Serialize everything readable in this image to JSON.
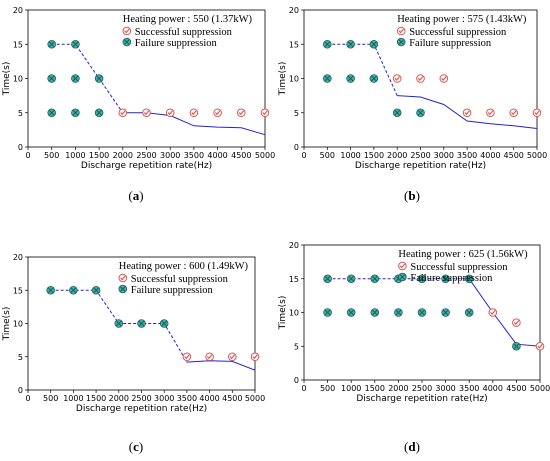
{
  "colors": {
    "line": "#2222dd",
    "success_marker": "#d9534f",
    "failure_fill": "#3db39a",
    "failure_cross": "#1d5c66"
  },
  "chart_data": [
    {
      "type": "line",
      "panel": "(a)",
      "legend_title": "Heating power : 550 (1.37kW)",
      "legend": [
        "Successful suppression",
        "Failure suppression"
      ],
      "legend_placement": "top-right",
      "xlabel": "Discharge repetition rate(Hz)",
      "ylabel": "Time(s)",
      "xlim": [
        0,
        5000
      ],
      "ylim": [
        0,
        20
      ],
      "xticks": [
        0,
        500,
        1000,
        1500,
        2000,
        2500,
        3000,
        3500,
        4000,
        4500,
        5000
      ],
      "yticks": [
        0,
        5,
        10,
        15,
        20
      ],
      "grid": false,
      "line": [
        [
          500,
          15
        ],
        [
          1000,
          15
        ],
        [
          1500,
          10
        ],
        [
          2000,
          5
        ],
        [
          2500,
          5
        ],
        [
          3000,
          4.6
        ],
        [
          3500,
          3.1
        ],
        [
          4000,
          2.9
        ],
        [
          4500,
          2.8
        ],
        [
          5000,
          1.8
        ]
      ],
      "dashed_until_x": 2000,
      "success": [
        [
          2000,
          5
        ],
        [
          2500,
          5
        ],
        [
          3000,
          5
        ],
        [
          3500,
          5
        ],
        [
          4000,
          5
        ],
        [
          4500,
          5
        ],
        [
          5000,
          5
        ]
      ],
      "failure": [
        [
          500,
          15
        ],
        [
          500,
          10
        ],
        [
          500,
          5
        ],
        [
          1000,
          15
        ],
        [
          1000,
          10
        ],
        [
          1000,
          5
        ],
        [
          1500,
          10
        ],
        [
          1500,
          5
        ]
      ]
    },
    {
      "type": "line",
      "panel": "(b)",
      "legend_title": "Heating power : 575 (1.43kW)",
      "legend": [
        "Successful suppression",
        "Failure suppression"
      ],
      "legend_placement": "top-right",
      "xlabel": "Discharge repetition rate(Hz)",
      "ylabel": "Time(s)",
      "xlim": [
        0,
        5000
      ],
      "ylim": [
        0,
        20
      ],
      "xticks": [
        0,
        500,
        1000,
        1500,
        2000,
        2500,
        3000,
        3500,
        4000,
        4500,
        5000
      ],
      "yticks": [
        0,
        5,
        10,
        15,
        20
      ],
      "grid": false,
      "line": [
        [
          500,
          15
        ],
        [
          1000,
          15
        ],
        [
          1500,
          15
        ],
        [
          2000,
          7.5
        ],
        [
          2500,
          7.3
        ],
        [
          3000,
          6.2
        ],
        [
          3500,
          3.8
        ],
        [
          4000,
          3.4
        ],
        [
          4500,
          3.1
        ],
        [
          5000,
          2.7
        ]
      ],
      "dashed_until_x": 2000,
      "success": [
        [
          2000,
          10
        ],
        [
          2500,
          10
        ],
        [
          3000,
          10
        ],
        [
          3500,
          5
        ],
        [
          4000,
          5
        ],
        [
          4500,
          5
        ],
        [
          5000,
          5
        ]
      ],
      "failure": [
        [
          500,
          15
        ],
        [
          500,
          10
        ],
        [
          1000,
          15
        ],
        [
          1000,
          10
        ],
        [
          1500,
          15
        ],
        [
          1500,
          10
        ],
        [
          2000,
          5
        ],
        [
          2500,
          5
        ]
      ]
    },
    {
      "type": "line",
      "panel": "(c)",
      "legend_title": "Heating power : 600 (1.49kW)",
      "legend": [
        "Successful suppression",
        "Failure suppression"
      ],
      "legend_placement": "top-right",
      "xlabel": "Discharge repetition rate(Hz)",
      "ylabel": "Time(s)",
      "xlim": [
        0,
        5000
      ],
      "ylim": [
        0,
        20
      ],
      "xticks": [
        0,
        500,
        1000,
        1500,
        2000,
        2500,
        3000,
        3500,
        4000,
        4500,
        5000
      ],
      "yticks": [
        0,
        5,
        10,
        15,
        20
      ],
      "grid": false,
      "line": [
        [
          500,
          15
        ],
        [
          1000,
          15
        ],
        [
          1500,
          15
        ],
        [
          2000,
          10
        ],
        [
          2500,
          10
        ],
        [
          3000,
          10
        ],
        [
          3500,
          4.2
        ],
        [
          4000,
          4.4
        ],
        [
          4500,
          4.3
        ],
        [
          5000,
          3.0
        ]
      ],
      "dashed_until_x": 3500,
      "success": [
        [
          3500,
          5
        ],
        [
          4000,
          5
        ],
        [
          4500,
          5
        ],
        [
          5000,
          5
        ]
      ],
      "failure": [
        [
          500,
          15
        ],
        [
          1000,
          15
        ],
        [
          1500,
          15
        ],
        [
          2000,
          10
        ],
        [
          2500,
          10
        ],
        [
          3000,
          10
        ]
      ]
    },
    {
      "type": "line",
      "panel": "(d)",
      "legend_title": "Heating power : 625 (1.56kW)",
      "legend": [
        "Successful suppression",
        "Failure suppression"
      ],
      "legend_placement": "top-right",
      "xlabel": "Discharge repetition rate(Hz)",
      "ylabel": "Time(s)",
      "xlim": [
        0,
        5000
      ],
      "ylim": [
        0,
        20
      ],
      "xticks": [
        0,
        500,
        1000,
        1500,
        2000,
        2500,
        3000,
        3500,
        4000,
        4500,
        5000
      ],
      "yticks": [
        0,
        5,
        10,
        15,
        20
      ],
      "grid": false,
      "line": [
        [
          500,
          15
        ],
        [
          1000,
          15
        ],
        [
          1500,
          15
        ],
        [
          2000,
          15
        ],
        [
          2500,
          15
        ],
        [
          3000,
          15
        ],
        [
          3500,
          15
        ],
        [
          4000,
          10
        ],
        [
          4500,
          5.3
        ],
        [
          5000,
          5
        ]
      ],
      "dashed_until_x": 3500,
      "success": [
        [
          4000,
          10
        ],
        [
          4500,
          8.5
        ],
        [
          5000,
          5
        ]
      ],
      "failure": [
        [
          500,
          15
        ],
        [
          500,
          10
        ],
        [
          1000,
          15
        ],
        [
          1000,
          10
        ],
        [
          1500,
          15
        ],
        [
          1500,
          10
        ],
        [
          2000,
          15
        ],
        [
          2000,
          10
        ],
        [
          2500,
          15
        ],
        [
          2500,
          10
        ],
        [
          3000,
          15
        ],
        [
          3000,
          10
        ],
        [
          3500,
          15
        ],
        [
          3500,
          10
        ],
        [
          4500,
          5
        ]
      ]
    }
  ]
}
